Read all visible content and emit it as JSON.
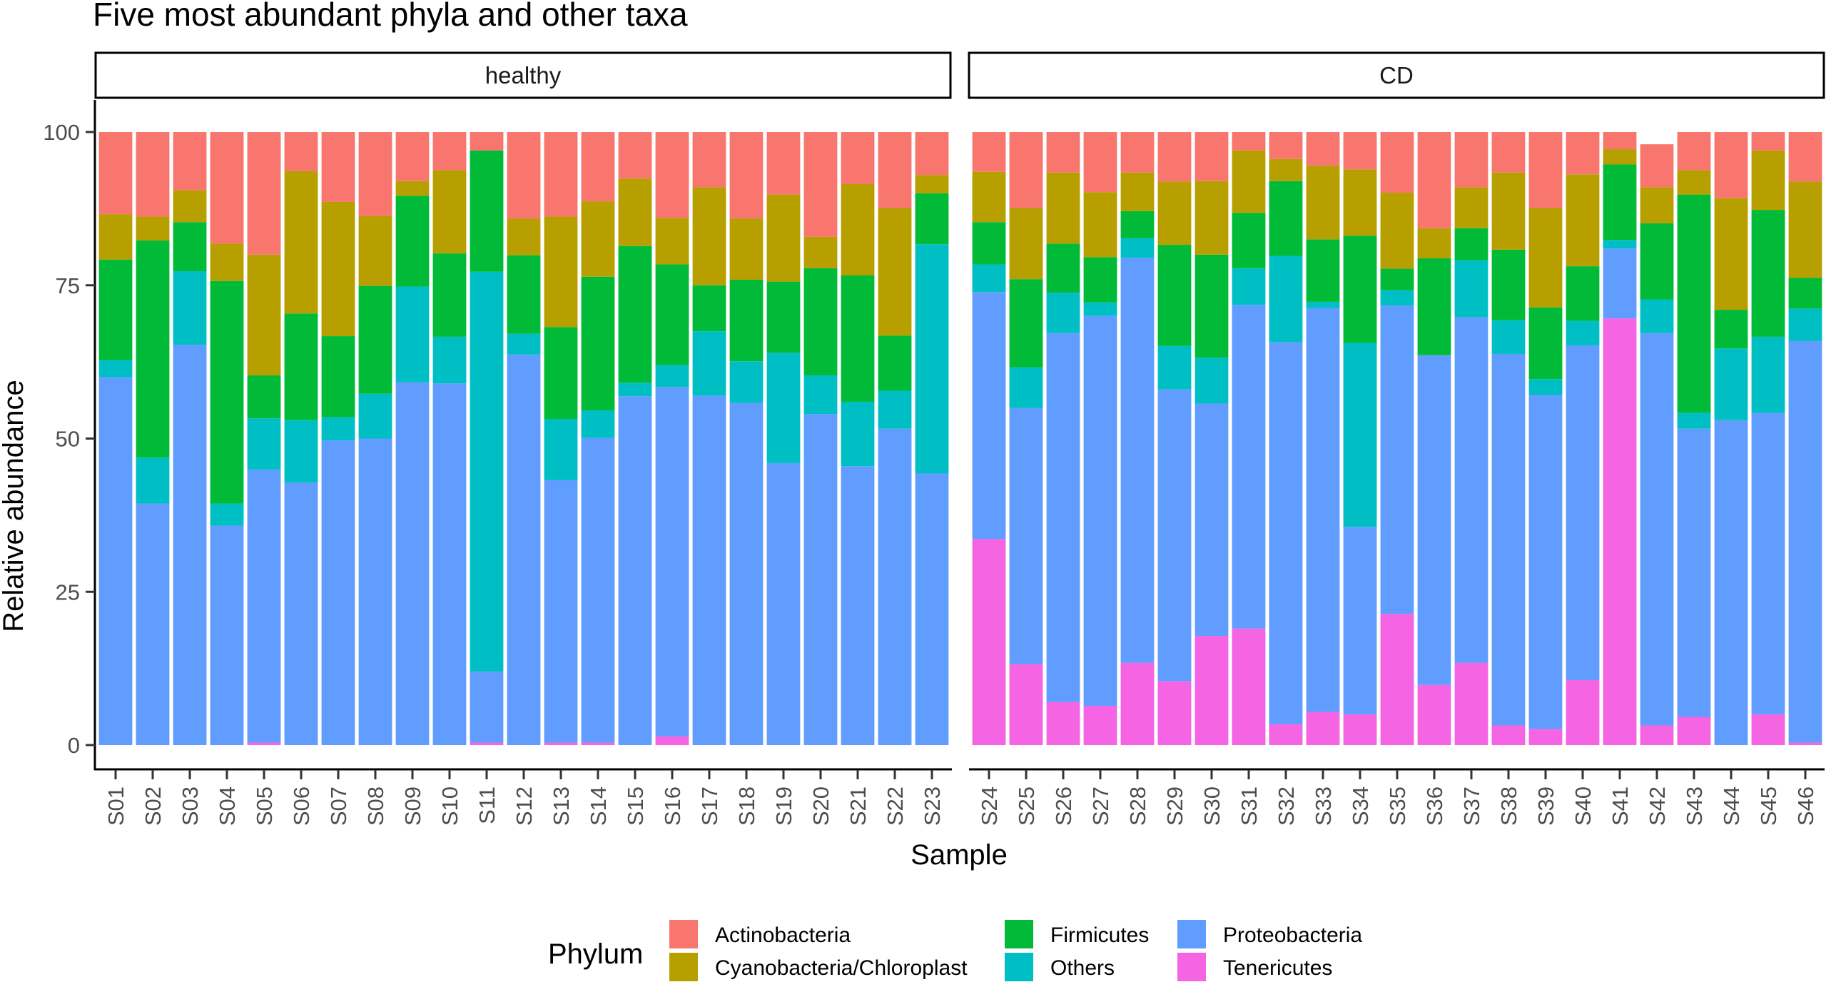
{
  "chart_data": {
    "type": "bar",
    "stacked": true,
    "title": "Five most abundant phyla and other taxa",
    "xlabel": "Sample",
    "ylabel": "Relative abundance",
    "ylim": [
      0,
      100
    ],
    "yticks": [
      "0",
      "25",
      "50",
      "75",
      "100"
    ],
    "grid": false,
    "legend_title": "Phylum",
    "legend_position": "bottom",
    "stack_order": [
      "Tenericutes",
      "Proteobacteria",
      "Others",
      "Firmicutes",
      "Cyanobacteria/Chloroplast",
      "Actinobacteria"
    ],
    "phyla": [
      {
        "name": "Actinobacteria",
        "color": "#F8766D"
      },
      {
        "name": "Cyanobacteria/Chloroplast",
        "color": "#B79F00"
      },
      {
        "name": "Firmicutes",
        "color": "#00BA38"
      },
      {
        "name": "Others",
        "color": "#00BFC4"
      },
      {
        "name": "Proteobacteria",
        "color": "#619CFF"
      },
      {
        "name": "Tenericutes",
        "color": "#F564E3"
      }
    ],
    "facets": [
      {
        "label": "healthy",
        "samples": [
          "S01",
          "S02",
          "S03",
          "S04",
          "S05",
          "S06",
          "S07",
          "S08",
          "S09",
          "S10",
          "S11",
          "S12",
          "S13",
          "S14",
          "S15",
          "S16",
          "S17",
          "S18",
          "S19",
          "S20",
          "S21",
          "S22",
          "S23"
        ],
        "series": {
          "Tenericutes": [
            0,
            0,
            0,
            0,
            0.4,
            0,
            0,
            0,
            0,
            0,
            0.4,
            0,
            0.4,
            0.4,
            0,
            1.4,
            0,
            0,
            0,
            0,
            0,
            0,
            0
          ],
          "Proteobacteria": [
            60,
            39.4,
            65.3,
            35.8,
            44.5,
            42.8,
            49.7,
            50,
            59.2,
            59,
            11.6,
            63.7,
            42.8,
            49.7,
            56.9,
            57,
            57,
            55.8,
            46,
            54,
            45.5,
            51.6,
            44.3
          ],
          "Others": [
            2.8,
            7.5,
            12,
            3.6,
            8.4,
            10.2,
            3.8,
            7.3,
            15.6,
            7.6,
            65.2,
            3.4,
            10,
            4.5,
            2.2,
            3.6,
            10.5,
            6.8,
            18,
            6.3,
            10.5,
            6.2,
            37.4
          ],
          "Firmicutes": [
            16.4,
            35.4,
            8,
            36.3,
            7,
            17.4,
            13.2,
            17.6,
            14.8,
            13.6,
            19.8,
            12.8,
            15,
            21.8,
            22.3,
            16.4,
            7.5,
            13.3,
            11.6,
            17.5,
            20.6,
            9,
            8.3
          ],
          "Cyanobacteria/Chloroplast": [
            7.4,
            3.9,
            5.2,
            6.1,
            19.7,
            23.2,
            21.9,
            11.4,
            2.4,
            13.6,
            0,
            6,
            18,
            12.3,
            11,
            7.6,
            16,
            10,
            14.2,
            5.1,
            14.9,
            20.8,
            3
          ],
          "Actinobacteria": [
            13.4,
            13.8,
            9.5,
            18.2,
            20,
            6.4,
            11.4,
            13.7,
            8,
            6.2,
            3,
            14.1,
            13.8,
            11.3,
            7.6,
            14,
            9,
            14.1,
            10.2,
            17.1,
            8.5,
            12.4,
            7
          ]
        }
      },
      {
        "label": "CD",
        "samples": [
          "S24",
          "S25",
          "S26",
          "S27",
          "S28",
          "S29",
          "S30",
          "S31",
          "S32",
          "S33",
          "S34",
          "S35",
          "S36",
          "S37",
          "S38",
          "S39",
          "S40",
          "S41",
          "S42",
          "S43",
          "S44",
          "S45",
          "S46"
        ],
        "series": {
          "Tenericutes": [
            33.6,
            13.2,
            7,
            6.4,
            13.4,
            10.4,
            17.8,
            19,
            3.4,
            5.4,
            5,
            21.4,
            9.8,
            13.4,
            3.2,
            2.6,
            10.6,
            69.6,
            3.2,
            4.6,
            0,
            5,
            0.4
          ],
          "Proteobacteria": [
            40.3,
            41.8,
            60.2,
            63.6,
            66.1,
            47.6,
            37.9,
            52.8,
            62.3,
            65.9,
            30.6,
            50.3,
            53.8,
            56.4,
            60.6,
            54.5,
            54.6,
            11.4,
            64,
            47,
            53,
            49.2,
            65.5
          ],
          "Others": [
            4.5,
            6.6,
            6.6,
            2.2,
            3.2,
            7.1,
            7.5,
            6,
            14.1,
            1,
            30,
            2.5,
            0,
            9.3,
            5.5,
            2.6,
            4,
            1.4,
            5.5,
            2.6,
            11.7,
            12.4,
            5.3
          ],
          "Firmicutes": [
            6.9,
            14.4,
            8,
            7.4,
            4.4,
            16.5,
            16.8,
            9,
            12.2,
            10.2,
            17.5,
            3.5,
            15.8,
            5.2,
            11.5,
            11.7,
            8.9,
            12.3,
            12.4,
            35.6,
            6.3,
            20.7,
            5
          ],
          "Cyanobacteria/Chloroplast": [
            8.2,
            11.6,
            11.6,
            10.6,
            6.3,
            10.3,
            12,
            10.2,
            3.6,
            12,
            10.8,
            12.4,
            4.9,
            6.7,
            12.6,
            16.2,
            15,
            2.5,
            5.9,
            4,
            18.2,
            9.7,
            15.7
          ],
          "Actinobacteria": [
            6.5,
            12.4,
            6.6,
            9.8,
            6.6,
            8.1,
            8,
            3,
            4.4,
            5.5,
            6.1,
            9.9,
            15.7,
            9,
            6.6,
            12.4,
            6.9,
            2.8,
            7,
            6.2,
            10.8,
            3,
            8.1
          ]
        }
      }
    ]
  }
}
